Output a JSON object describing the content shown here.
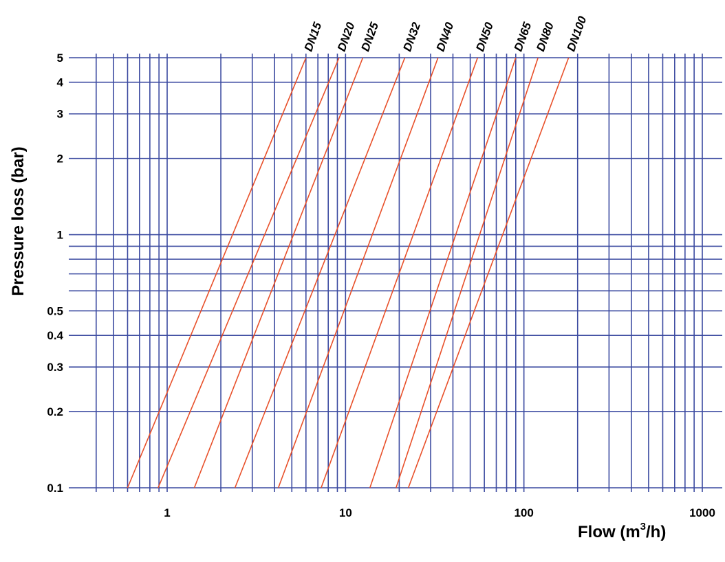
{
  "chart_data": {
    "type": "line",
    "xlabel": "Flow (m",
    "xlabel_sup": "3",
    "xlabel_end": "/h)",
    "ylabel": "Pressure loss (bar)",
    "x_scale": "log",
    "y_scale": "log",
    "xlim": [
      0.35,
      1100
    ],
    "ylim": [
      0.1,
      5
    ],
    "grid": true,
    "x_ticks": [
      {
        "value": 1,
        "label": "1"
      },
      {
        "value": 10,
        "label": "10"
      },
      {
        "value": 100,
        "label": "100"
      },
      {
        "value": 1000,
        "label": "1000"
      }
    ],
    "y_ticks": [
      {
        "value": 0.1,
        "label": "0.1"
      },
      {
        "value": 0.2,
        "label": "0.2"
      },
      {
        "value": 0.3,
        "label": "0.3"
      },
      {
        "value": 0.4,
        "label": "0.4"
      },
      {
        "value": 0.5,
        "label": "0.5"
      },
      {
        "value": 1,
        "label": "1"
      },
      {
        "value": 2,
        "label": "2"
      },
      {
        "value": 3,
        "label": "3"
      },
      {
        "value": 4,
        "label": "4"
      },
      {
        "value": 5,
        "label": "5"
      }
    ],
    "x_grid": [
      0.4,
      0.5,
      0.6,
      0.7,
      0.8,
      0.9,
      1,
      2,
      3,
      4,
      5,
      6,
      7,
      8,
      9,
      10,
      20,
      30,
      40,
      50,
      60,
      70,
      80,
      90,
      100,
      200,
      300,
      400,
      500,
      600,
      700,
      800,
      900,
      1000
    ],
    "y_grid": [
      0.1,
      0.2,
      0.3,
      0.4,
      0.5,
      0.6,
      0.7,
      0.8,
      0.9,
      1,
      2,
      3,
      4,
      5
    ],
    "series": [
      {
        "name": "DN15",
        "x": [
          0.6,
          6.0
        ],
        "y": [
          0.1,
          5
        ]
      },
      {
        "name": "DN20",
        "x": [
          0.89,
          9.2
        ],
        "y": [
          0.1,
          5
        ]
      },
      {
        "name": "DN25",
        "x": [
          1.42,
          12.5
        ],
        "y": [
          0.1,
          5
        ]
      },
      {
        "name": "DN32",
        "x": [
          2.4,
          21.5
        ],
        "y": [
          0.1,
          5
        ]
      },
      {
        "name": "DN40",
        "x": [
          4.2,
          33
        ],
        "y": [
          0.1,
          5
        ]
      },
      {
        "name": "DN50",
        "x": [
          7.3,
          55
        ],
        "y": [
          0.1,
          5
        ]
      },
      {
        "name": "DN65",
        "x": [
          13.7,
          90
        ],
        "y": [
          0.1,
          5
        ]
      },
      {
        "name": "DN80",
        "x": [
          19.2,
          120
        ],
        "y": [
          0.1,
          5
        ]
      },
      {
        "name": "DN100",
        "x": [
          22.5,
          178
        ],
        "y": [
          0.1,
          5
        ]
      }
    ],
    "colors": {
      "grid": "#3b4aa0",
      "lines": "#e8502a",
      "text": "#000000"
    }
  }
}
